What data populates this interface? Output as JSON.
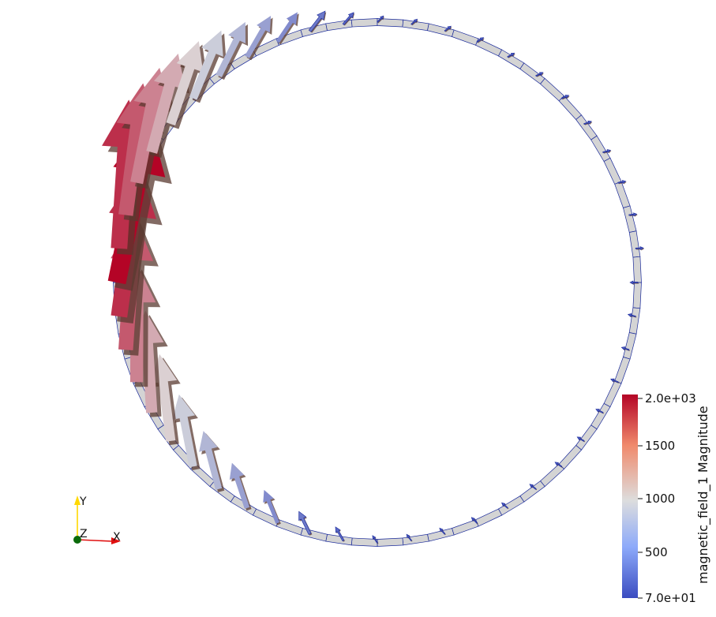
{
  "scene": {
    "background": "#ffffff",
    "ring_color": "#d4d4d4",
    "ring_edge_color": "#1a2a9a",
    "shadow_color": "#5a3a30"
  },
  "colorbar": {
    "title": "magnetic_field_1 Magnitude",
    "max_label": "2.0e+03",
    "min_label": "7.0e+01",
    "ticks": [
      "1500",
      "1000",
      "500"
    ],
    "tick_values": [
      1500,
      1000,
      500
    ],
    "range": [
      70,
      2000
    ],
    "colormap": {
      "low": "#3b4cc0",
      "mid": "#dddddd",
      "high": "#b40426"
    }
  },
  "orientation_axes": {
    "y_label": "Y",
    "z_label": "Z",
    "x_label": "X",
    "y_color": "#ffd800",
    "x_color": "#e01010",
    "z_color": "#0a6a0a"
  }
}
